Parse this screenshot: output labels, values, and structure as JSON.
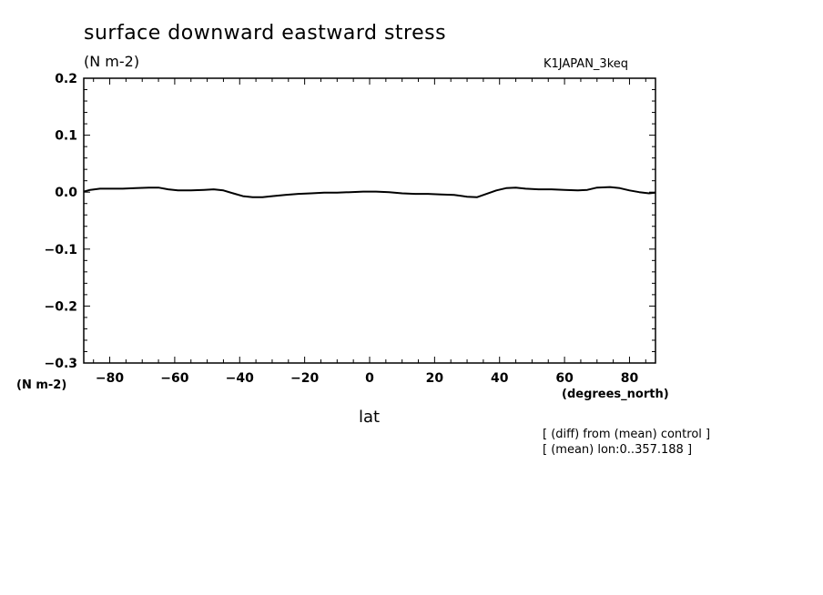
{
  "chart_data": {
    "type": "line",
    "title": "surface downward eastward stress",
    "subtitle": "(N m-2)",
    "run_label": "K1JAPAN_3keq",
    "ylabel": "(N m-2)",
    "xlabel": "lat",
    "xunits": "(degrees_north)",
    "notes": [
      "[ (diff) from (mean) control ]",
      "[ (mean) lon:0..357.188 ]"
    ],
    "xlim": [
      -88,
      88
    ],
    "ylim": [
      -0.3,
      0.2
    ],
    "x_ticks": [
      -80,
      -60,
      -40,
      -20,
      0,
      20,
      40,
      60,
      80
    ],
    "x_tick_labels": [
      "−80",
      "−60",
      "−40",
      "−20",
      "0",
      "20",
      "40",
      "60",
      "80"
    ],
    "y_ticks": [
      0.2,
      0.1,
      0.0,
      -0.1,
      -0.2,
      -0.3
    ],
    "y_tick_labels": [
      "0.2",
      "0.1",
      "0.0",
      "−0.1",
      "−0.2",
      "−0.3"
    ],
    "grid": false,
    "series": [
      {
        "color": "#000000",
        "x": [
          -88,
          -86,
          -83,
          -80,
          -76,
          -72,
          -68,
          -65,
          -62,
          -59,
          -55,
          -51,
          -48,
          -45,
          -42,
          -39,
          -36,
          -33,
          -30,
          -26,
          -22,
          -18,
          -14,
          -10,
          -6,
          -2,
          2,
          6,
          10,
          14,
          18,
          22,
          26,
          30,
          33,
          36,
          39,
          42,
          45,
          48,
          52,
          56,
          60,
          64,
          67,
          70,
          74,
          77,
          80,
          83,
          86,
          88
        ],
        "y": [
          0.001,
          0.004,
          0.006,
          0.006,
          0.006,
          0.007,
          0.008,
          0.008,
          0.005,
          0.003,
          0.003,
          0.004,
          0.005,
          0.003,
          -0.002,
          -0.007,
          -0.009,
          -0.009,
          -0.007,
          -0.005,
          -0.003,
          -0.002,
          -0.001,
          -0.001,
          0.0,
          0.001,
          0.001,
          0.0,
          -0.002,
          -0.003,
          -0.003,
          -0.004,
          -0.005,
          -0.008,
          -0.009,
          -0.003,
          0.003,
          0.007,
          0.008,
          0.006,
          0.005,
          0.005,
          0.004,
          0.003,
          0.004,
          0.008,
          0.009,
          0.007,
          0.003,
          0.0,
          -0.002,
          -0.001
        ]
      }
    ]
  }
}
